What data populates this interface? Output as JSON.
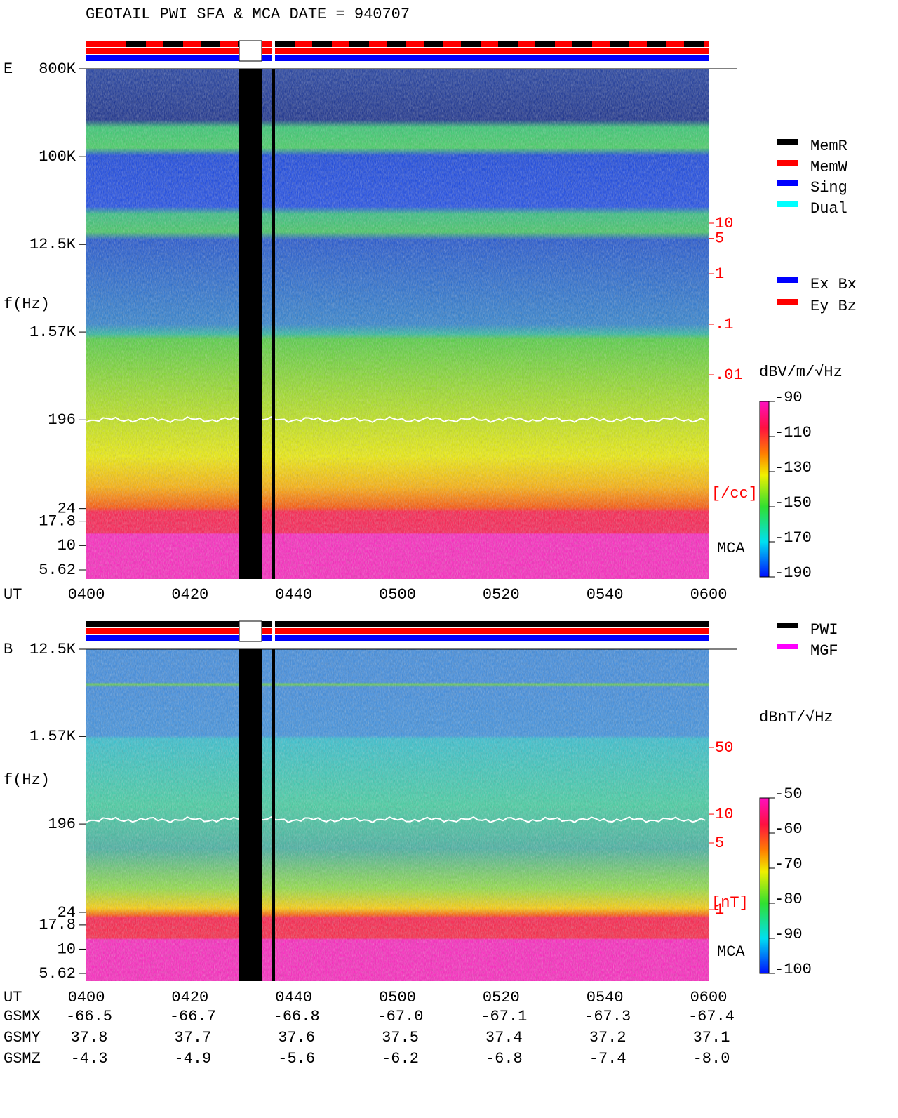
{
  "title": "GEOTAIL  PWI SFA & MCA   DATE = 940707",
  "chart_data": [
    {
      "type": "spectrogram",
      "panel_label": "E",
      "ylabel": "f(Hz)",
      "xlabel": "UT",
      "log": true,
      "ylim": [
        5.62,
        800000
      ],
      "yticks": [
        {
          "value": 800000,
          "label": "800K"
        },
        {
          "value": 100000,
          "label": "100K"
        },
        {
          "value": 12500,
          "label": "12.5K"
        },
        {
          "value": 1570,
          "label": "1.57K"
        },
        196,
        24,
        17.8,
        10,
        5.62
      ],
      "xticks": [
        "0400",
        "0420",
        "0440",
        "0500",
        "0520",
        "0540",
        "0600"
      ],
      "mca_label": "MCA",
      "density_ticks": [
        10,
        5,
        1,
        {
          "value": 0.1,
          "label": ".1"
        },
        {
          "value": 0.01,
          "label": ".01"
        }
      ],
      "density_unit": "[/cc]",
      "colorbar": {
        "label": "dBV/m/√Hz",
        "lim": [
          -190,
          -90
        ],
        "ticks": [
          -90,
          -110,
          -130,
          -150,
          -170,
          -190
        ]
      },
      "legend": [
        {
          "name": "MemR",
          "color": "#000000"
        },
        {
          "name": "MemW",
          "color": "#ff0000"
        },
        {
          "name": "Sing",
          "color": "#0000ff"
        },
        {
          "name": "Dual",
          "color": "#00ffff"
        },
        {
          "name": "Ex Bx",
          "color": "#0000ff"
        },
        {
          "name": "Ey Bz",
          "color": "#ff0000"
        }
      ]
    },
    {
      "type": "spectrogram",
      "panel_label": "B",
      "ylabel": "f(Hz)",
      "xlabel": "UT",
      "log": true,
      "ylim": [
        5.62,
        12500
      ],
      "yticks": [
        {
          "value": 12500,
          "label": "12.5K"
        },
        {
          "value": 1570,
          "label": "1.57K"
        },
        196,
        24,
        17.8,
        10,
        5.62
      ],
      "xticks": [
        "0400",
        "0420",
        "0440",
        "0500",
        "0520",
        "0540",
        "0600"
      ],
      "mca_label": "MCA",
      "density_ticks": [
        50,
        10,
        5,
        1
      ],
      "density_unit": "[nT]",
      "colorbar": {
        "label": "dBnT/√Hz",
        "lim": [
          -100,
          -50
        ],
        "ticks": [
          -50,
          -60,
          -70,
          -80,
          -90,
          -100
        ]
      },
      "legend": [
        {
          "name": "PWI",
          "color": "#000000"
        },
        {
          "name": "MGF",
          "color": "#ff00ff"
        }
      ]
    }
  ],
  "orbit": {
    "rows": [
      {
        "name": "GSMX",
        "values": [
          "-66.5",
          "-66.7",
          "-66.8",
          "-67.0",
          "-67.1",
          "-67.3",
          "-67.4"
        ]
      },
      {
        "name": "GSMY",
        "values": [
          "37.8",
          "37.7",
          "37.6",
          "37.5",
          "37.4",
          "37.2",
          "37.1"
        ]
      },
      {
        "name": "GSMZ",
        "values": [
          "-4.3",
          "-4.9",
          "-5.6",
          "-6.2",
          "-6.8",
          "-7.4",
          "-8.0"
        ]
      }
    ]
  }
}
